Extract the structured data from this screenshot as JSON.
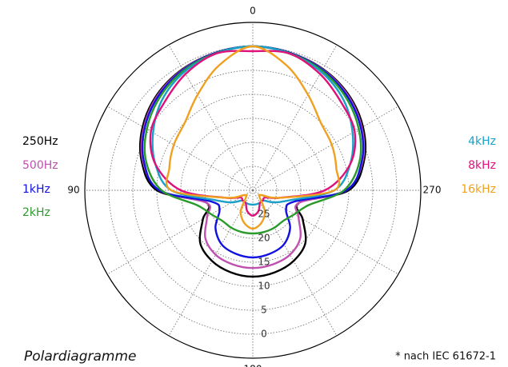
{
  "chart_data": {
    "type": "polar",
    "title": "Polardiagramme",
    "note": "* nach IEC 61672-1",
    "angles": [
      0,
      15,
      30,
      45,
      60,
      75,
      90,
      105,
      120,
      135,
      150,
      165,
      180,
      195,
      210,
      225,
      240,
      255,
      270,
      285,
      300,
      315,
      330,
      345
    ],
    "angle_ticks": [
      0,
      90,
      180,
      270
    ],
    "rlim": [
      30,
      -5
    ],
    "rticks": [
      0,
      5,
      10,
      15,
      20,
      25
    ],
    "grid": true,
    "series": [
      {
        "name": "250Hz",
        "color": "#000000",
        "legend": "left",
        "values": [
          0,
          0.3,
          0.8,
          1.8,
          3.5,
          6,
          10,
          20,
          18,
          14.5,
          13,
          12.3,
          12,
          12.3,
          13,
          14.5,
          18,
          20,
          10,
          6,
          3.5,
          1.8,
          0.8,
          0.3
        ]
      },
      {
        "name": "500Hz",
        "color": "#c050b0",
        "legend": "left",
        "values": [
          0,
          0.3,
          0.9,
          2,
          3.8,
          6.3,
          10.5,
          20,
          19,
          16,
          14.5,
          14,
          13.8,
          14,
          14.5,
          16,
          19,
          20,
          10.5,
          6.3,
          3.8,
          2,
          0.9,
          0.3
        ]
      },
      {
        "name": "1kHz",
        "color": "#1010e0",
        "legend": "left",
        "values": [
          0,
          0.3,
          1,
          2.2,
          4,
          6.5,
          10.5,
          21,
          22,
          19,
          17,
          16.3,
          16,
          16.3,
          17,
          19,
          22,
          21,
          10.5,
          6.5,
          4,
          2.2,
          1,
          0.3
        ]
      },
      {
        "name": "2kHz",
        "color": "#2a9a2a",
        "legend": "left",
        "values": [
          0,
          0.4,
          1.2,
          2.6,
          4.5,
          7,
          11,
          18,
          20,
          21,
          21,
          21,
          21,
          21,
          21,
          21,
          20,
          18,
          11,
          7,
          4.5,
          2.6,
          1.2,
          0.4
        ]
      },
      {
        "name": "4kHz",
        "color": "#1aa0c8",
        "legend": "right",
        "values": [
          0,
          0.5,
          1.5,
          3.3,
          6,
          9,
          13,
          22,
          25,
          27,
          27,
          27,
          27,
          27,
          27,
          27,
          25,
          22,
          13,
          9,
          6,
          3.3,
          1.5,
          0.5
        ]
      },
      {
        "name": "8kHz",
        "color": "#e0107a",
        "legend": "right",
        "values": [
          1,
          0.5,
          2,
          4,
          5.5,
          9,
          15,
          24,
          27,
          27,
          27,
          25.5,
          24.7,
          25.5,
          27,
          27,
          27,
          24,
          15,
          9,
          5.5,
          4,
          2,
          0.5
        ]
      },
      {
        "name": "16kHz",
        "color": "#f0a020",
        "legend": "right",
        "values": [
          0,
          3,
          7,
          10,
          11,
          12,
          13,
          24,
          28,
          28,
          25,
          23,
          22,
          23,
          25,
          28,
          28,
          24,
          13,
          12,
          11,
          10,
          7,
          3
        ]
      }
    ]
  }
}
